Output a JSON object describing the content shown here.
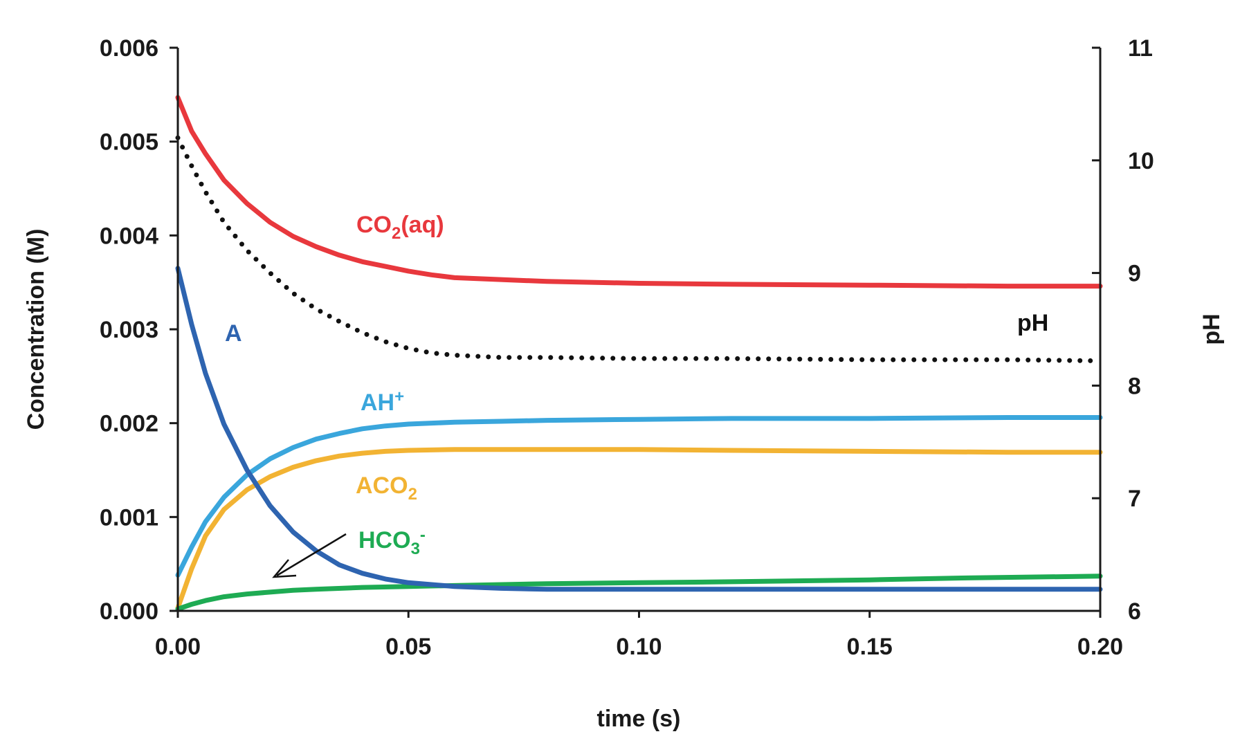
{
  "chart_data": {
    "type": "line",
    "xlabel": "time (s)",
    "ylabel": "Concentration  (M)",
    "y2label": "pH",
    "xlim": [
      0,
      0.2
    ],
    "ylim": [
      0,
      0.006
    ],
    "y2lim": [
      6,
      11
    ],
    "grid": false,
    "legend": "none",
    "x_ticks": [
      "0.00",
      "0.05",
      "0.10",
      "0.15",
      "0.20"
    ],
    "y_ticks": [
      "0.000",
      "0.001",
      "0.002",
      "0.003",
      "0.004",
      "0.005",
      "0.006"
    ],
    "y2_ticks": [
      "6",
      "7",
      "8",
      "9",
      "10",
      "11"
    ],
    "x_tick_values": [
      0,
      0.05,
      0.1,
      0.15,
      0.2
    ],
    "y_tick_values": [
      0,
      0.001,
      0.002,
      0.003,
      0.004,
      0.005,
      0.006
    ],
    "y2_tick_values": [
      6,
      7,
      8,
      9,
      10,
      11
    ],
    "series": [
      {
        "label": "CO₂(aq)",
        "color": "#e8383d",
        "axis": "left",
        "style": "solid",
        "x": [
          0,
          0.003,
          0.006,
          0.01,
          0.015,
          0.02,
          0.025,
          0.03,
          0.035,
          0.04,
          0.045,
          0.05,
          0.055,
          0.06,
          0.07,
          0.08,
          0.1,
          0.12,
          0.15,
          0.18,
          0.2
        ],
        "y": [
          0.00547,
          0.00511,
          0.00487,
          0.00459,
          0.00434,
          0.00414,
          0.00399,
          0.00388,
          0.00379,
          0.00372,
          0.00367,
          0.00362,
          0.00358,
          0.00355,
          0.00353,
          0.00351,
          0.00349,
          0.00348,
          0.00347,
          0.00346,
          0.00346
        ]
      },
      {
        "label": "A",
        "color": "#2e64b0",
        "axis": "left",
        "style": "solid",
        "x": [
          0,
          0.003,
          0.006,
          0.01,
          0.015,
          0.02,
          0.025,
          0.03,
          0.035,
          0.04,
          0.045,
          0.05,
          0.06,
          0.07,
          0.08,
          0.1,
          0.12,
          0.15,
          0.2
        ],
        "y": [
          0.00365,
          0.00305,
          0.00253,
          0.00199,
          0.0015,
          0.00112,
          0.00084,
          0.00064,
          0.00049,
          0.0004,
          0.00034,
          0.0003,
          0.00026,
          0.00024,
          0.00023,
          0.00023,
          0.00023,
          0.00023,
          0.00023
        ]
      },
      {
        "label": "AH⁺",
        "color": "#3aa6dc",
        "axis": "left",
        "style": "solid",
        "x": [
          0,
          0.003,
          0.006,
          0.01,
          0.015,
          0.02,
          0.025,
          0.03,
          0.035,
          0.04,
          0.045,
          0.05,
          0.06,
          0.07,
          0.08,
          0.1,
          0.12,
          0.15,
          0.18,
          0.2
        ],
        "y": [
          0.00038,
          0.00068,
          0.00095,
          0.00121,
          0.00145,
          0.00162,
          0.00174,
          0.00183,
          0.00189,
          0.00194,
          0.00197,
          0.00199,
          0.00201,
          0.00202,
          0.00203,
          0.00204,
          0.00205,
          0.00205,
          0.00206,
          0.00206
        ]
      },
      {
        "label": "ACO₂",
        "color": "#f2b333",
        "axis": "left",
        "style": "solid",
        "x": [
          0,
          0.003,
          0.006,
          0.01,
          0.015,
          0.02,
          0.025,
          0.03,
          0.035,
          0.04,
          0.045,
          0.05,
          0.06,
          0.07,
          0.08,
          0.1,
          0.12,
          0.15,
          0.18,
          0.2
        ],
        "y": [
          3e-05,
          0.00045,
          0.0008,
          0.00108,
          0.00129,
          0.00143,
          0.00153,
          0.0016,
          0.00165,
          0.00168,
          0.0017,
          0.00171,
          0.00172,
          0.00172,
          0.00172,
          0.00172,
          0.00171,
          0.0017,
          0.00169,
          0.00169
        ]
      },
      {
        "label": "HCO₃⁻",
        "color": "#1eab53",
        "axis": "left",
        "style": "solid",
        "x": [
          0,
          0.003,
          0.006,
          0.01,
          0.015,
          0.02,
          0.025,
          0.03,
          0.04,
          0.05,
          0.06,
          0.08,
          0.1,
          0.12,
          0.15,
          0.17,
          0.2
        ],
        "y": [
          2e-05,
          7e-05,
          0.00011,
          0.00015,
          0.00018,
          0.0002,
          0.00022,
          0.00023,
          0.00025,
          0.00026,
          0.00027,
          0.00029,
          0.0003,
          0.00031,
          0.00033,
          0.00035,
          0.00037
        ]
      },
      {
        "label": "pH",
        "color": "#111111",
        "axis": "right",
        "style": "dotted",
        "x": [
          0,
          0.003,
          0.006,
          0.01,
          0.015,
          0.02,
          0.025,
          0.03,
          0.035,
          0.04,
          0.045,
          0.05,
          0.055,
          0.06,
          0.07,
          0.08,
          0.1,
          0.12,
          0.15,
          0.18,
          0.2
        ],
        "y": [
          10.2,
          9.95,
          9.72,
          9.45,
          9.2,
          9.0,
          8.82,
          8.68,
          8.57,
          8.47,
          8.39,
          8.33,
          8.29,
          8.27,
          8.25,
          8.25,
          8.24,
          8.24,
          8.23,
          8.23,
          8.22
        ]
      }
    ]
  },
  "labels": {
    "co2_base": "CO",
    "co2_sub": "2",
    "co2_rest": "(aq)",
    "a": "A",
    "ah_base": "AH",
    "ah_sup": "+",
    "aco2_base": "ACO",
    "aco2_sub": "2",
    "hco3_base": "HCO",
    "hco3_sub": "3",
    "hco3_sup": "-",
    "ph": "pH"
  },
  "colors": {
    "co2": "#e8383d",
    "a": "#2e64b0",
    "ah": "#3aa6dc",
    "aco2": "#f2b333",
    "hco3": "#1eab53",
    "ph": "#111111"
  }
}
